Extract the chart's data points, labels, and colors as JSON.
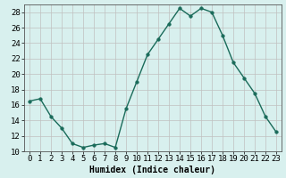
{
  "x": [
    0,
    1,
    2,
    3,
    4,
    5,
    6,
    7,
    8,
    9,
    10,
    11,
    12,
    13,
    14,
    15,
    16,
    17,
    18,
    19,
    20,
    21,
    22,
    23
  ],
  "y": [
    16.5,
    16.8,
    14.5,
    13.0,
    11.0,
    10.5,
    10.8,
    11.0,
    10.5,
    15.5,
    19.0,
    22.5,
    24.5,
    26.5,
    28.5,
    27.5,
    28.5,
    28.0,
    25.0,
    21.5,
    19.5,
    17.5,
    14.5,
    12.5
  ],
  "line_color": "#1a6b5a",
  "marker": "o",
  "markersize": 2.5,
  "linewidth": 1.0,
  "xlabel": "Humidex (Indice chaleur)",
  "xlim": [
    -0.5,
    23.5
  ],
  "ylim": [
    10,
    29
  ],
  "yticks": [
    10,
    12,
    14,
    16,
    18,
    20,
    22,
    24,
    26,
    28
  ],
  "xticks": [
    0,
    1,
    2,
    3,
    4,
    5,
    6,
    7,
    8,
    9,
    10,
    11,
    12,
    13,
    14,
    15,
    16,
    17,
    18,
    19,
    20,
    21,
    22,
    23
  ],
  "bg_color": "#d8f0ee",
  "grid_color": "#c0c0c0",
  "xlabel_fontsize": 7,
  "tick_fontsize": 6.5
}
